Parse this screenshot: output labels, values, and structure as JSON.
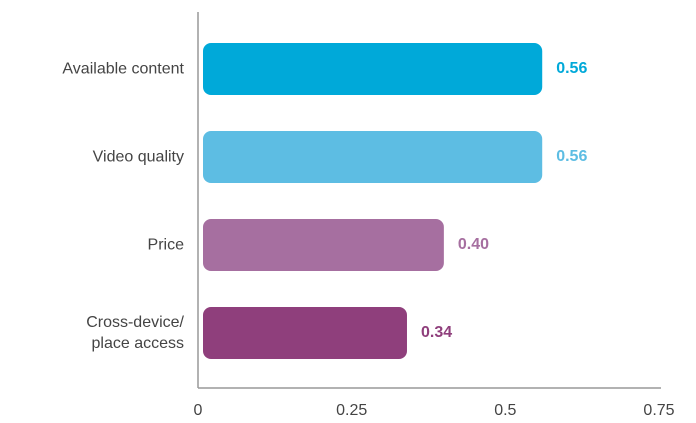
{
  "chart_data": {
    "type": "bar",
    "orientation": "horizontal",
    "categories": [
      "Available content",
      "Video quality",
      "Price",
      "Cross-device/\nplace access"
    ],
    "values": [
      0.56,
      0.56,
      0.4,
      0.34
    ],
    "value_labels": [
      "0.56",
      "0.56",
      "0.40",
      "0.34"
    ],
    "colors": [
      "#00a9d9",
      "#5dbde3",
      "#a66fa0",
      "#8f3f7c"
    ],
    "xlim": [
      0,
      0.75
    ],
    "xticks": [
      0,
      0.25,
      0.5,
      0.75
    ],
    "grid": false
  }
}
